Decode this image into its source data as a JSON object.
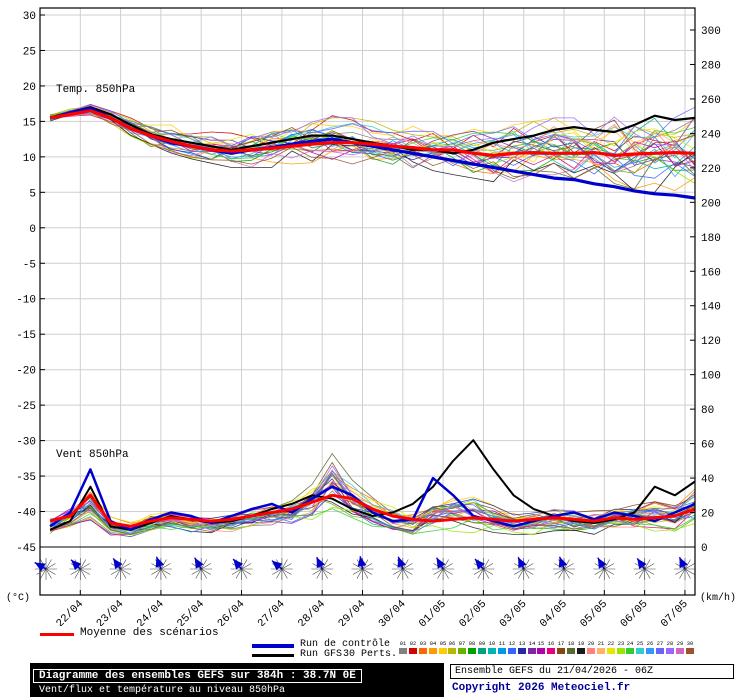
{
  "chart_data": {
    "type": "line",
    "title": "Diagramme des ensembles GEFS sur 384h : 38.7N 0E",
    "subtitle": "Vent/flux et température au niveau 850hPa",
    "x_dates": [
      "22/04",
      "23/04",
      "24/04",
      "25/04",
      "26/04",
      "27/04",
      "28/04",
      "29/04",
      "30/04",
      "01/05",
      "02/05",
      "03/05",
      "04/05",
      "05/05",
      "06/05",
      "07/05"
    ],
    "time_axis": {
      "run": "21/04/2026 06Z",
      "step_hours": 12,
      "points": 33,
      "range_hours": 384
    },
    "left_axis": {
      "unit": "(°C)",
      "min": -45,
      "max": 30,
      "ticks": [
        30,
        25,
        20,
        15,
        10,
        5,
        0,
        -5,
        -10,
        -15,
        -20,
        -25,
        -30,
        -35,
        -40,
        -45
      ]
    },
    "right_axis": {
      "unit": "(km/h)",
      "min": 0,
      "max": 300,
      "ticks": [
        300,
        280,
        260,
        240,
        220,
        200,
        180,
        160,
        140,
        120,
        100,
        80,
        60,
        40,
        20,
        0
      ]
    },
    "annotations": {
      "temp": "Temp. 850hPa",
      "wind": "Vent 850hPa"
    },
    "series": {
      "temp_mean": [
        15.5,
        16,
        16.5,
        15.5,
        14,
        13,
        12.2,
        11.5,
        11,
        10.8,
        11,
        11.2,
        11.5,
        11.8,
        12,
        12,
        11.8,
        11.5,
        11.3,
        11,
        11,
        10.5,
        10.2,
        10.5,
        10.6,
        10.5,
        10.5,
        10.6,
        10.2,
        10.4,
        10.5,
        10.6,
        10.5
      ],
      "temp_control": [
        15.5,
        16.2,
        16.8,
        15.5,
        14,
        13,
        12,
        11.5,
        11,
        10.5,
        11,
        11.3,
        11.8,
        12.2,
        12.5,
        12,
        11.5,
        11,
        10.5,
        10,
        9.5,
        9,
        8.5,
        8,
        7.5,
        7,
        6.8,
        6.2,
        5.8,
        5.2,
        4.8,
        4.6,
        4.2
      ],
      "temp_gfs": [
        15.5,
        16.3,
        17,
        16,
        14.5,
        13.2,
        12.5,
        12,
        11.5,
        11,
        11.5,
        12,
        12.5,
        13,
        13,
        12.5,
        12,
        11.5,
        11,
        11,
        10.5,
        11,
        12,
        12.5,
        13,
        13.8,
        14.2,
        13.8,
        13.5,
        14.5,
        15.8,
        15.2,
        15.5
      ],
      "temp_spread_min": [
        15,
        15.5,
        15.8,
        14.5,
        12.5,
        11,
        10,
        9.5,
        9,
        8.5,
        8.5,
        8.5,
        9,
        9,
        9,
        9,
        8.5,
        8.5,
        8,
        8,
        7.5,
        7,
        6.5,
        6.5,
        6,
        6,
        6,
        5.5,
        5,
        4.5,
        5,
        4.5,
        4.5
      ],
      "temp_spread_max": [
        16,
        16.8,
        17.5,
        16.5,
        15.5,
        15,
        14.5,
        14,
        13.5,
        13.5,
        14,
        14.5,
        15,
        15.5,
        16,
        15.5,
        15,
        14.5,
        14.5,
        14,
        14,
        14,
        14,
        14.5,
        15,
        15.5,
        15.5,
        16,
        16,
        16.5,
        17,
        16.5,
        17
      ],
      "wind_mean": [
        15,
        18,
        30,
        14,
        12,
        15,
        17,
        16,
        15,
        16,
        18,
        20,
        22,
        26,
        30,
        28,
        22,
        18,
        16,
        15,
        16,
        17,
        16,
        15,
        16,
        17,
        16,
        15,
        17,
        16,
        17,
        18,
        22
      ],
      "wind_control": [
        12,
        20,
        45,
        15,
        10,
        16,
        20,
        18,
        14,
        18,
        22,
        25,
        20,
        28,
        35,
        30,
        20,
        15,
        16,
        40,
        30,
        18,
        15,
        12,
        15,
        18,
        20,
        16,
        20,
        18,
        15,
        20,
        25
      ],
      "wind_gfs": [
        10,
        15,
        35,
        12,
        10,
        14,
        18,
        16,
        14,
        15,
        18,
        22,
        25,
        30,
        28,
        22,
        18,
        20,
        25,
        35,
        50,
        62,
        45,
        30,
        22,
        18,
        15,
        14,
        16,
        20,
        35,
        30,
        38
      ],
      "wind_spread_min": [
        5,
        8,
        10,
        6,
        5,
        6,
        7,
        6,
        5,
        6,
        7,
        8,
        8,
        10,
        12,
        10,
        8,
        6,
        5,
        5,
        5,
        6,
        5,
        5,
        5,
        6,
        5,
        5,
        6,
        5,
        5,
        6,
        8
      ],
      "wind_spread_max": [
        25,
        35,
        50,
        25,
        20,
        28,
        30,
        28,
        26,
        28,
        32,
        36,
        40,
        55,
        80,
        55,
        40,
        32,
        30,
        45,
        50,
        45,
        35,
        30,
        32,
        35,
        32,
        30,
        35,
        38,
        45,
        40,
        55
      ]
    },
    "members": {
      "count": 30,
      "labels": [
        "01",
        "02",
        "03",
        "04",
        "05",
        "06",
        "07",
        "08",
        "09",
        "10",
        "11",
        "12",
        "13",
        "14",
        "15",
        "16",
        "17",
        "18",
        "19",
        "20",
        "21",
        "22",
        "23",
        "24",
        "25",
        "26",
        "27",
        "28",
        "29",
        "30"
      ],
      "colors": [
        "#808080",
        "#d40000",
        "#ff6600",
        "#ff9900",
        "#ffcc00",
        "#b8b800",
        "#66b300",
        "#00a000",
        "#00a380",
        "#00b3b3",
        "#0099e6",
        "#3366ff",
        "#2929a3",
        "#7a29a3",
        "#b300b3",
        "#e6007a",
        "#8b4513",
        "#556b2f",
        "#1a1a1a",
        "#ff8080",
        "#ffb366",
        "#e6e600",
        "#99e600",
        "#33cc33",
        "#33cccc",
        "#3399ff",
        "#6666ff",
        "#9966ff",
        "#cc66cc",
        "#a0522d"
      ]
    },
    "barbs": {
      "color": "#0000cc",
      "directions_deg": [
        210,
        225,
        235,
        250,
        240,
        230,
        220,
        245,
        260,
        250,
        240,
        230,
        245,
        250,
        240,
        235,
        245
      ]
    }
  },
  "legend": {
    "mean": "Moyenne des scénarios",
    "control": "Run de contrôle",
    "gfs": "Run GFS",
    "perts": "30 Perts.",
    "colors": {
      "mean": "#ff0000",
      "control": "#0000cc",
      "gfs": "#000000"
    }
  },
  "footer": {
    "title_line1": "Diagramme des ensembles GEFS sur 384h : 38.7N 0E",
    "title_line2": "Vent/flux et température au niveau 850hPa",
    "run_info": "Ensemble GEFS du 21/04/2026 - 06Z",
    "copyright": "Copyright 2026 Meteociel.fr"
  }
}
